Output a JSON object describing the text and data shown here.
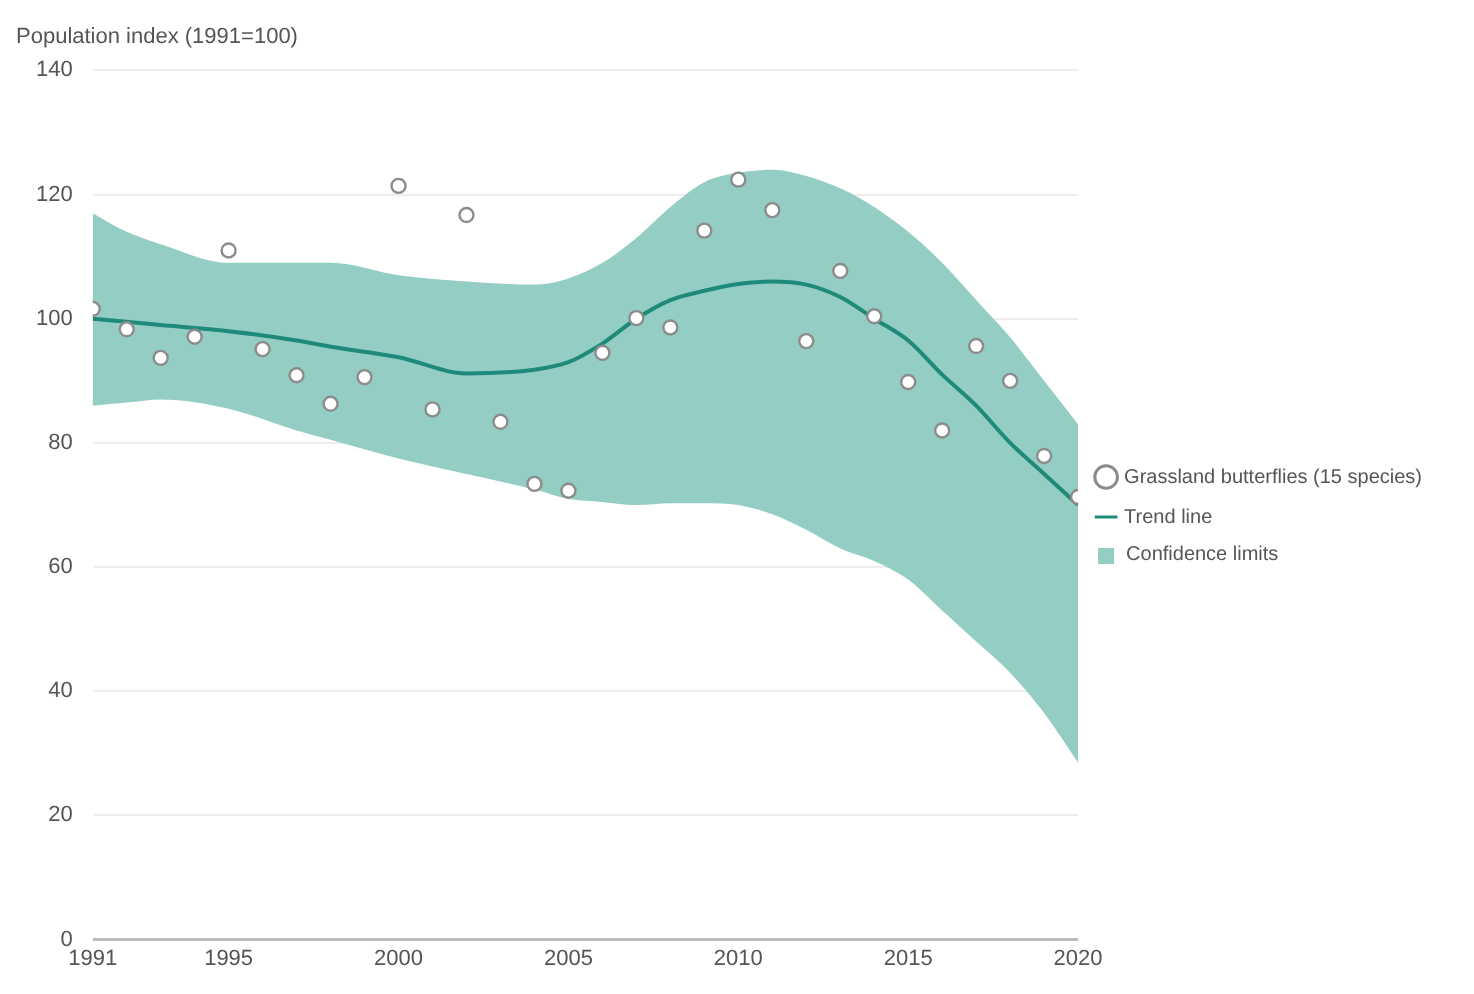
{
  "chart_data": {
    "type": "scatter",
    "ylabel": "Population index (1991=100)",
    "xlim": [
      1991,
      2020
    ],
    "xticks": [
      1991,
      1995,
      2000,
      2005,
      2010,
      2015,
      2020
    ],
    "ylim": [
      0,
      140
    ],
    "yticks": [
      0,
      20,
      40,
      60,
      80,
      100,
      120,
      140
    ],
    "grid": "y",
    "legend": "right",
    "annotations": [
      "Confidence limits"
    ],
    "series": [
      {
        "name": "Grassland butterflies (15 species)",
        "type": "scatter",
        "marker": "circle",
        "color": "#8c8c8c",
        "x": [
          1991,
          1992,
          1993,
          1994,
          1995,
          1996,
          1997,
          1998,
          1999,
          2000,
          2001,
          2002,
          2003,
          2004,
          2005,
          2006,
          2007,
          2008,
          2009,
          2010,
          2011,
          2012,
          2013,
          2014,
          2015,
          2016,
          2017,
          2018,
          2019,
          2020
        ],
        "values": [
          101.6,
          98.3,
          93.7,
          97.1,
          111,
          95.1,
          90.9,
          86.3,
          90.6,
          121.4,
          85.4,
          116.7,
          83.4,
          73.4,
          72.3,
          94.5,
          100.1,
          98.6,
          114.2,
          122.4,
          117.5,
          96.4,
          107.7,
          100.4,
          89.8,
          82,
          95.6,
          90,
          77.9,
          71.3
        ]
      },
      {
        "name": "Trend line",
        "type": "line",
        "marker": "none",
        "color": "#1f8a7a",
        "x": [
          1991,
          1992,
          1993,
          1995,
          1997,
          1998,
          2000,
          2002,
          2004,
          2005,
          2006,
          2007,
          2008,
          2009,
          2010,
          2011,
          2012,
          2013,
          2014,
          2015,
          2016,
          2017,
          2018,
          2019,
          2020
        ],
        "values": [
          100,
          99.5,
          99,
          98,
          96.5,
          95.5,
          93.8,
          91.2,
          91.8,
          93,
          96,
          100,
          103,
          104.5,
          105.6,
          106,
          105.5,
          103.5,
          100,
          96.5,
          91,
          86,
          80,
          75,
          70
        ],
        "lower": [
          86,
          86.5,
          87,
          85.5,
          82,
          80.5,
          77.5,
          75,
          72.5,
          71,
          70.5,
          70,
          70.3,
          70.3,
          70,
          68.5,
          66,
          63,
          61,
          58,
          53,
          48,
          43,
          36.5,
          28.5
        ],
        "upper": [
          117,
          114,
          112,
          109,
          109,
          109,
          107,
          106,
          105.5,
          106.5,
          109,
          113,
          118,
          122,
          123.5,
          124,
          123,
          121,
          118,
          114,
          109,
          103,
          97,
          90,
          83
        ]
      }
    ]
  }
}
